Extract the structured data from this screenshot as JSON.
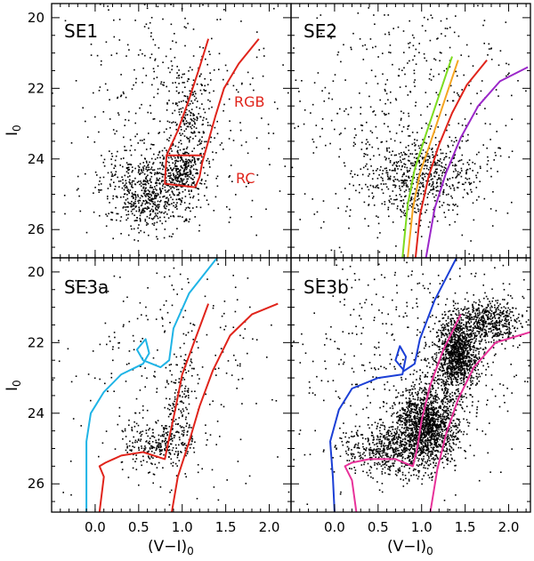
{
  "chart_data": {
    "type": "scatter",
    "description_free": true,
    "xlabel": "(V−I)",
    "xlabel_sub": "0",
    "ylabel": "I",
    "ylabel_sub": "0",
    "xlim": [
      -0.5,
      2.25
    ],
    "ylim": [
      26.8,
      19.6
    ],
    "x_ticks": [
      0.0,
      0.5,
      1.0,
      1.5,
      2.0
    ],
    "x_tick_labels": [
      "0.0",
      "0.5",
      "1.0",
      "1.5",
      "2.0"
    ],
    "y_ticks": [
      20,
      22,
      24,
      26
    ],
    "y_tick_labels": [
      "20",
      "22",
      "24",
      "26"
    ],
    "panels": [
      {
        "id": "SE1",
        "label": "SE1",
        "annotations": [
          {
            "text": "RGB",
            "x": 1.55,
            "y": 22.35
          },
          {
            "text": "RC",
            "x": 1.55,
            "y": 24.5
          }
        ],
        "star_clusters": [
          {
            "cx": 0.62,
            "cy": 24.9,
            "sx": 0.28,
            "sy": 0.55,
            "n": 650
          },
          {
            "cx": 1.08,
            "cy": 23.0,
            "sx": 0.12,
            "sy": 1.0,
            "n": 260
          },
          {
            "cx": 1.0,
            "cy": 24.3,
            "sx": 0.1,
            "sy": 0.25,
            "n": 160
          },
          {
            "cx": 0.85,
            "cy": 22.5,
            "sx": 0.6,
            "sy": 2.0,
            "n": 420
          }
        ],
        "curves": [
          {
            "name": "RGB selection box left",
            "color": "#e0241b",
            "points": [
              [
                1.3,
                20.6
              ],
              [
                1.2,
                21.4
              ],
              [
                1.08,
                22.3
              ],
              [
                0.95,
                23.2
              ],
              [
                0.82,
                23.9
              ],
              [
                0.8,
                24.7
              ],
              [
                1.15,
                24.8
              ]
            ]
          },
          {
            "name": "RGB selection box right",
            "color": "#e0241b",
            "points": [
              [
                1.88,
                20.6
              ],
              [
                1.65,
                21.3
              ],
              [
                1.48,
                22.0
              ],
              [
                1.38,
                22.8
              ],
              [
                1.3,
                23.5
              ],
              [
                1.23,
                24.1
              ],
              [
                1.2,
                24.5
              ],
              [
                1.15,
                24.8
              ]
            ]
          },
          {
            "name": "RC box top",
            "color": "#e0241b",
            "points": [
              [
                0.82,
                23.9
              ],
              [
                1.23,
                23.9
              ]
            ]
          }
        ]
      },
      {
        "id": "SE2",
        "label": "SE2",
        "annotations": [],
        "star_clusters": [
          {
            "cx": 0.95,
            "cy": 24.5,
            "sx": 0.32,
            "sy": 0.6,
            "n": 600
          },
          {
            "cx": 0.8,
            "cy": 22.8,
            "sx": 0.7,
            "sy": 2.1,
            "n": 520
          }
        ],
        "curves": [
          {
            "name": "isochrone green",
            "color": "#7ddc1f",
            "points": [
              [
                1.35,
                21.1
              ],
              [
                1.2,
                22.2
              ],
              [
                1.05,
                23.3
              ],
              [
                0.92,
                24.3
              ],
              [
                0.84,
                25.3
              ],
              [
                0.78,
                26.8
              ]
            ]
          },
          {
            "name": "isochrone orange",
            "color": "#f5a623",
            "points": [
              [
                1.42,
                21.2
              ],
              [
                1.27,
                22.3
              ],
              [
                1.12,
                23.4
              ],
              [
                0.98,
                24.4
              ],
              [
                0.9,
                25.4
              ],
              [
                0.84,
                26.8
              ]
            ]
          },
          {
            "name": "isochrone red",
            "color": "#e0241b",
            "points": [
              [
                1.75,
                21.2
              ],
              [
                1.52,
                21.9
              ],
              [
                1.35,
                22.7
              ],
              [
                1.2,
                23.6
              ],
              [
                1.08,
                24.5
              ],
              [
                0.98,
                25.6
              ],
              [
                0.93,
                26.8
              ]
            ]
          },
          {
            "name": "isochrone purple",
            "color": "#9b27c9",
            "points": [
              [
                2.22,
                21.4
              ],
              [
                1.9,
                21.8
              ],
              [
                1.65,
                22.5
              ],
              [
                1.45,
                23.4
              ],
              [
                1.28,
                24.4
              ],
              [
                1.15,
                25.4
              ],
              [
                1.05,
                26.8
              ]
            ]
          }
        ]
      },
      {
        "id": "SE3a",
        "label": "SE3a",
        "annotations": [],
        "star_clusters": [
          {
            "cx": 0.75,
            "cy": 24.8,
            "sx": 0.22,
            "sy": 0.35,
            "n": 280
          },
          {
            "cx": 0.95,
            "cy": 23.6,
            "sx": 0.1,
            "sy": 0.7,
            "n": 120
          },
          {
            "cx": 0.85,
            "cy": 22.4,
            "sx": 0.7,
            "sy": 2.0,
            "n": 300
          }
        ],
        "curves": [
          {
            "name": "isochrone cyan",
            "color": "#1fb4e6",
            "points": [
              [
                1.4,
                19.6
              ],
              [
                1.08,
                20.6
              ],
              [
                0.9,
                21.6
              ],
              [
                0.85,
                22.5
              ],
              [
                0.75,
                22.7
              ],
              [
                0.55,
                22.5
              ],
              [
                0.48,
                22.2
              ],
              [
                0.58,
                21.9
              ],
              [
                0.62,
                22.3
              ],
              [
                0.55,
                22.6
              ],
              [
                0.3,
                22.9
              ],
              [
                0.1,
                23.4
              ],
              [
                -0.05,
                24.0
              ],
              [
                -0.1,
                24.8
              ],
              [
                -0.1,
                26.8
              ]
            ]
          },
          {
            "name": "isochrone red a",
            "color": "#e0241b",
            "points": [
              [
                1.3,
                20.9
              ],
              [
                1.15,
                21.9
              ],
              [
                1.0,
                22.9
              ],
              [
                0.92,
                23.9
              ],
              [
                0.85,
                24.7
              ],
              [
                0.8,
                25.3
              ],
              [
                0.55,
                25.1
              ],
              [
                0.3,
                25.2
              ],
              [
                0.12,
                25.4
              ],
              [
                0.05,
                25.5
              ],
              [
                0.1,
                25.8
              ],
              [
                0.05,
                26.8
              ]
            ]
          },
          {
            "name": "isochrone red b",
            "color": "#e0241b",
            "points": [
              [
                2.1,
                20.9
              ],
              [
                1.8,
                21.2
              ],
              [
                1.55,
                21.8
              ],
              [
                1.35,
                22.8
              ],
              [
                1.2,
                23.8
              ],
              [
                1.08,
                24.8
              ],
              [
                0.95,
                25.8
              ],
              [
                0.88,
                26.8
              ]
            ]
          }
        ]
      },
      {
        "id": "SE3b",
        "label": "SE3b",
        "annotations": [],
        "star_clusters": [
          {
            "cx": 1.05,
            "cy": 24.3,
            "sx": 0.18,
            "sy": 0.55,
            "n": 1500
          },
          {
            "cx": 1.4,
            "cy": 22.3,
            "sx": 0.12,
            "sy": 0.5,
            "n": 1100
          },
          {
            "cx": 1.75,
            "cy": 21.4,
            "sx": 0.18,
            "sy": 0.3,
            "n": 500
          },
          {
            "cx": 0.6,
            "cy": 25.0,
            "sx": 0.25,
            "sy": 0.35,
            "n": 500
          },
          {
            "cx": 0.9,
            "cy": 22.4,
            "sx": 0.8,
            "sy": 2.1,
            "n": 600
          }
        ],
        "curves": [
          {
            "name": "isochrone blue",
            "color": "#1b3fd6",
            "points": [
              [
                1.4,
                19.6
              ],
              [
                1.15,
                20.8
              ],
              [
                0.98,
                21.9
              ],
              [
                0.92,
                22.6
              ],
              [
                0.8,
                22.8
              ],
              [
                0.7,
                22.5
              ],
              [
                0.75,
                22.1
              ],
              [
                0.82,
                22.4
              ],
              [
                0.78,
                22.9
              ],
              [
                0.5,
                23.0
              ],
              [
                0.2,
                23.3
              ],
              [
                0.05,
                23.9
              ],
              [
                -0.05,
                24.8
              ],
              [
                -0.02,
                25.8
              ],
              [
                0.0,
                26.8
              ]
            ]
          },
          {
            "name": "isochrone magenta a",
            "color": "#e8329a",
            "points": [
              [
                1.45,
                21.2
              ],
              [
                1.25,
                22.2
              ],
              [
                1.1,
                23.2
              ],
              [
                1.0,
                24.2
              ],
              [
                0.95,
                25.0
              ],
              [
                0.9,
                25.5
              ],
              [
                0.7,
                25.3
              ],
              [
                0.4,
                25.3
              ],
              [
                0.2,
                25.4
              ],
              [
                0.12,
                25.5
              ],
              [
                0.2,
                25.9
              ],
              [
                0.25,
                26.8
              ]
            ]
          },
          {
            "name": "isochrone magenta b",
            "color": "#e8329a",
            "points": [
              [
                2.25,
                21.7
              ],
              [
                1.85,
                22.0
              ],
              [
                1.6,
                22.7
              ],
              [
                1.42,
                23.6
              ],
              [
                1.28,
                24.6
              ],
              [
                1.18,
                25.6
              ],
              [
                1.1,
                26.8
              ]
            ]
          }
        ]
      }
    ]
  }
}
